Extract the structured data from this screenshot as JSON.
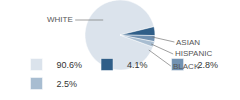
{
  "chart_data": {
    "type": "pie",
    "categories": [
      "WHITE",
      "ASIAN",
      "HISPANIC",
      "BLACK"
    ],
    "values": [
      90.6,
      4.1,
      2.8,
      2.5
    ],
    "value_labels": [
      "90.6%",
      "4.1%",
      "2.8%",
      "2.5%"
    ],
    "colors": [
      "#dbe3ec",
      "#2f5e88",
      "#7292b2",
      "#a8bdd1"
    ],
    "legend": "bottom"
  }
}
